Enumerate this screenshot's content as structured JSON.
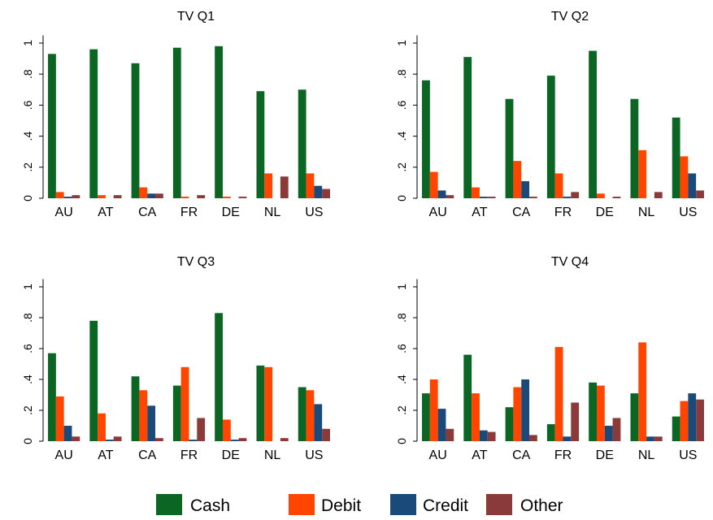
{
  "legend": {
    "items": [
      {
        "label": "Cash",
        "color": "#0b6623"
      },
      {
        "label": "Debit",
        "color": "#ff4500"
      },
      {
        "label": "Credit",
        "color": "#1a4a7a"
      },
      {
        "label": "Other",
        "color": "#8b3a3a"
      }
    ]
  },
  "chart_data": [
    {
      "type": "bar",
      "title": "TV Q1",
      "categories": [
        "AU",
        "AT",
        "CA",
        "FR",
        "DE",
        "NL",
        "US"
      ],
      "yticks": [
        "0",
        ".2",
        ".4",
        ".6",
        ".8",
        "1"
      ],
      "ylim": [
        0,
        1.05
      ],
      "grid": false,
      "series": [
        {
          "name": "Cash",
          "values": [
            0.93,
            0.96,
            0.87,
            0.97,
            0.98,
            0.69,
            0.7
          ]
        },
        {
          "name": "Debit",
          "values": [
            0.04,
            0.02,
            0.07,
            0.01,
            0.01,
            0.16,
            0.16
          ]
        },
        {
          "name": "Credit",
          "values": [
            0.01,
            0.0,
            0.03,
            0.0,
            0.0,
            0.0,
            0.08
          ]
        },
        {
          "name": "Other",
          "values": [
            0.02,
            0.02,
            0.03,
            0.02,
            0.01,
            0.14,
            0.06
          ]
        }
      ]
    },
    {
      "type": "bar",
      "title": "TV Q2",
      "categories": [
        "AU",
        "AT",
        "CA",
        "FR",
        "DE",
        "NL",
        "US"
      ],
      "yticks": [
        "0",
        ".2",
        ".4",
        ".6",
        ".8",
        "1"
      ],
      "ylim": [
        0,
        1.05
      ],
      "grid": false,
      "series": [
        {
          "name": "Cash",
          "values": [
            0.76,
            0.91,
            0.64,
            0.79,
            0.95,
            0.64,
            0.52
          ]
        },
        {
          "name": "Debit",
          "values": [
            0.17,
            0.07,
            0.24,
            0.16,
            0.03,
            0.31,
            0.27
          ]
        },
        {
          "name": "Credit",
          "values": [
            0.05,
            0.01,
            0.11,
            0.01,
            0.0,
            0.0,
            0.16
          ]
        },
        {
          "name": "Other",
          "values": [
            0.02,
            0.01,
            0.01,
            0.04,
            0.01,
            0.04,
            0.05
          ]
        }
      ]
    },
    {
      "type": "bar",
      "title": "TV Q3",
      "categories": [
        "AU",
        "AT",
        "CA",
        "FR",
        "DE",
        "NL",
        "US"
      ],
      "yticks": [
        "0",
        ".2",
        ".4",
        ".6",
        ".8",
        "1"
      ],
      "ylim": [
        0,
        1.05
      ],
      "grid": false,
      "series": [
        {
          "name": "Cash",
          "values": [
            0.57,
            0.78,
            0.42,
            0.36,
            0.83,
            0.49,
            0.35
          ]
        },
        {
          "name": "Debit",
          "values": [
            0.29,
            0.18,
            0.33,
            0.48,
            0.14,
            0.48,
            0.33
          ]
        },
        {
          "name": "Credit",
          "values": [
            0.1,
            0.01,
            0.23,
            0.01,
            0.01,
            0.0,
            0.24
          ]
        },
        {
          "name": "Other",
          "values": [
            0.03,
            0.03,
            0.02,
            0.15,
            0.02,
            0.02,
            0.08
          ]
        }
      ]
    },
    {
      "type": "bar",
      "title": "TV Q4",
      "categories": [
        "AU",
        "AT",
        "CA",
        "FR",
        "DE",
        "NL",
        "US"
      ],
      "yticks": [
        "0",
        ".2",
        ".4",
        ".6",
        ".8",
        "1"
      ],
      "ylim": [
        0,
        1.05
      ],
      "grid": false,
      "series": [
        {
          "name": "Cash",
          "values": [
            0.31,
            0.56,
            0.22,
            0.11,
            0.38,
            0.31,
            0.16
          ]
        },
        {
          "name": "Debit",
          "values": [
            0.4,
            0.31,
            0.35,
            0.61,
            0.36,
            0.64,
            0.26
          ]
        },
        {
          "name": "Credit",
          "values": [
            0.21,
            0.07,
            0.4,
            0.03,
            0.1,
            0.03,
            0.31
          ]
        },
        {
          "name": "Other",
          "values": [
            0.08,
            0.06,
            0.04,
            0.25,
            0.15,
            0.03,
            0.27
          ]
        }
      ]
    }
  ]
}
